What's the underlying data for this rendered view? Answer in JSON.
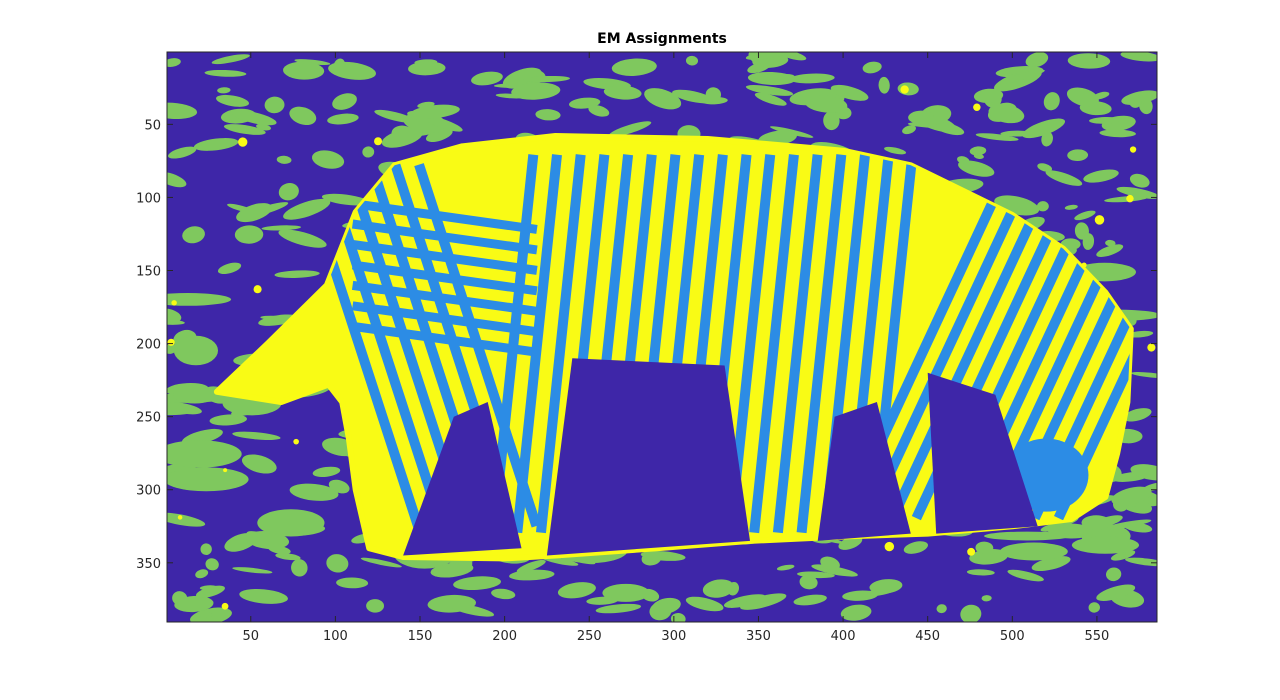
{
  "chart_data": {
    "type": "heatmap",
    "title": "EM Assignments",
    "xlabel": "",
    "ylabel": "",
    "xlim": [
      0.5,
      585.5
    ],
    "ylim": [
      0.5,
      390.5
    ],
    "y_reversed": true,
    "grid": false,
    "x_ticks": [
      50,
      100,
      150,
      200,
      250,
      300,
      350,
      400,
      450,
      500,
      550
    ],
    "y_ticks": [
      50,
      100,
      150,
      200,
      250,
      300,
      350
    ],
    "clusters": [
      {
        "label": "1",
        "color": "#3e26a8",
        "role": "background"
      },
      {
        "label": "2",
        "color": "#2c8ce5",
        "role": "dark stripes"
      },
      {
        "label": "3",
        "color": "#7fc85e",
        "role": "grass patches"
      },
      {
        "label": "4",
        "color": "#f9fb15",
        "role": "light stripes / outline"
      }
    ],
    "regions": [
      {
        "cluster": "4",
        "name": "zebra body silhouette",
        "outline_xy": [
          [
            175,
            65
          ],
          [
            230,
            58
          ],
          [
            320,
            60
          ],
          [
            400,
            68
          ],
          [
            440,
            78
          ],
          [
            470,
            95
          ],
          [
            500,
            112
          ],
          [
            530,
            135
          ],
          [
            555,
            165
          ],
          [
            570,
            190
          ],
          [
            568,
            240
          ],
          [
            562,
            275
          ],
          [
            555,
            305
          ],
          [
            535,
            320
          ],
          [
            500,
            325
          ],
          [
            450,
            330
          ],
          [
            400,
            332
          ],
          [
            345,
            335
          ],
          [
            290,
            340
          ],
          [
            230,
            345
          ],
          [
            200,
            347
          ],
          [
            140,
            346
          ],
          [
            120,
            340
          ],
          [
            112,
            300
          ],
          [
            108,
            265
          ],
          [
            104,
            240
          ],
          [
            96,
            228
          ],
          [
            68,
            240
          ],
          [
            30,
            233
          ],
          [
            60,
            200
          ],
          [
            95,
            160
          ],
          [
            112,
            110
          ],
          [
            135,
            78
          ]
        ]
      }
    ],
    "stripes_cluster": "2",
    "texture_cluster": "3"
  }
}
